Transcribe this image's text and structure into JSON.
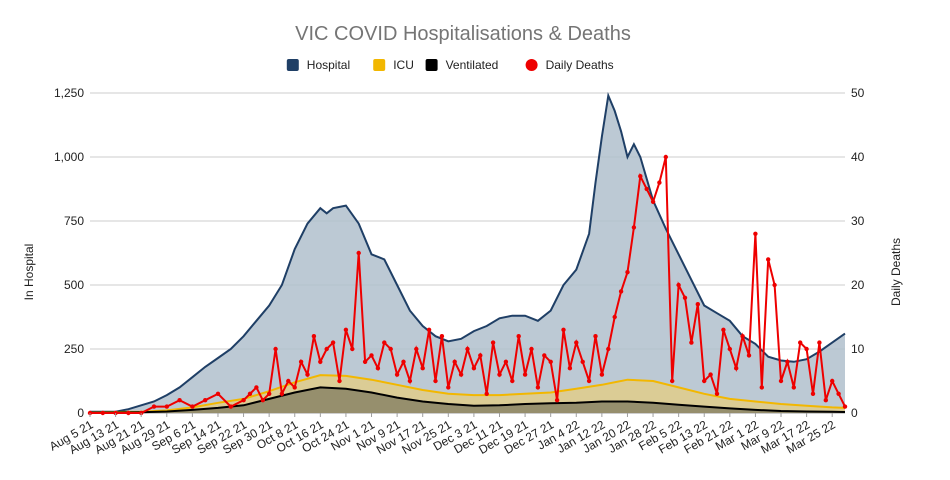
{
  "chart_data": {
    "type": "area",
    "title": "VIC COVID Hospitalisations & Deaths",
    "ylabel_left": "In Hospital",
    "ylabel_right": "Daily Deaths",
    "ylim_left": [
      0,
      1250
    ],
    "ylim_right": [
      0,
      50
    ],
    "yticks_left": [
      "0",
      "250",
      "500",
      "750",
      "1,000",
      "1,250"
    ],
    "yticks_right": [
      "0",
      "10",
      "20",
      "30",
      "40",
      "50"
    ],
    "grid": true,
    "legend_position": "top",
    "x_tick_labels": [
      "Aug 5 21",
      "Aug 13 21",
      "Aug 21 21",
      "Aug 29 21",
      "Sep 6 21",
      "Sep 14 21",
      "Sep 22 21",
      "Sep 30 21",
      "Oct 8 21",
      "Oct 16 21",
      "Oct 24 21",
      "Nov 1 21",
      "Nov 9 21",
      "Nov 17 21",
      "Nov 25 21",
      "Dec 3 21",
      "Dec 11 21",
      "Dec 19 21",
      "Dec 27 21",
      "Jan 4 22",
      "Jan 12 22",
      "Jan 20 22",
      "Jan 28 22",
      "Feb 5 22",
      "Feb 13 22",
      "Feb 21 22",
      "Mar 1 22",
      "Mar 9 22",
      "Mar 17 22",
      "Mar 25 22"
    ],
    "x_day_offsets": [
      0,
      8,
      16,
      24,
      32,
      40,
      48,
      56,
      64,
      72,
      80,
      88,
      96,
      104,
      112,
      120,
      128,
      136,
      144,
      152,
      160,
      168,
      176,
      184,
      192,
      200,
      208,
      216,
      224,
      232
    ],
    "series": [
      {
        "name": "Hospital",
        "axis": "left",
        "color": "#1f3f66",
        "fill": "#b0bfcc",
        "day_offsets": [
          0,
          8,
          12,
          16,
          20,
          24,
          28,
          32,
          36,
          40,
          44,
          48,
          52,
          56,
          60,
          64,
          68,
          72,
          74,
          76,
          80,
          84,
          88,
          92,
          96,
          100,
          104,
          108,
          112,
          116,
          120,
          124,
          128,
          132,
          136,
          140,
          144,
          148,
          152,
          156,
          158,
          160,
          162,
          164,
          166,
          168,
          170,
          172,
          176,
          180,
          184,
          188,
          192,
          196,
          200,
          204,
          208,
          212,
          216,
          220,
          224,
          228,
          232,
          236
        ],
        "values": [
          5,
          5,
          15,
          30,
          45,
          70,
          100,
          140,
          180,
          215,
          250,
          300,
          360,
          420,
          500,
          640,
          740,
          800,
          780,
          800,
          810,
          740,
          620,
          600,
          500,
          400,
          340,
          300,
          280,
          290,
          320,
          340,
          370,
          380,
          380,
          360,
          400,
          500,
          560,
          700,
          900,
          1080,
          1240,
          1180,
          1100,
          1000,
          1050,
          1000,
          830,
          720,
          620,
          520,
          420,
          390,
          360,
          300,
          270,
          220,
          205,
          200,
          210,
          240,
          275,
          310
        ]
      },
      {
        "name": "ICU",
        "axis": "left",
        "color": "#f2b700",
        "fill": "#e0cc8a",
        "day_offsets": [
          0,
          16,
          24,
          32,
          40,
          48,
          56,
          64,
          72,
          80,
          88,
          96,
          104,
          112,
          120,
          128,
          136,
          144,
          152,
          160,
          168,
          176,
          184,
          192,
          200,
          208,
          216,
          224,
          232,
          236
        ],
        "values": [
          2,
          5,
          10,
          22,
          40,
          55,
          85,
          120,
          148,
          145,
          130,
          110,
          90,
          75,
          70,
          70,
          75,
          80,
          95,
          110,
          130,
          125,
          100,
          75,
          55,
          45,
          35,
          28,
          22,
          20
        ]
      },
      {
        "name": "Ventilated",
        "axis": "left",
        "color": "#000000",
        "fill": "#8a8466",
        "day_offsets": [
          0,
          16,
          24,
          32,
          40,
          48,
          56,
          64,
          72,
          80,
          88,
          96,
          104,
          112,
          120,
          128,
          136,
          144,
          152,
          160,
          168,
          176,
          184,
          192,
          200,
          208,
          216,
          224,
          232,
          236
        ],
        "values": [
          1,
          3,
          6,
          12,
          20,
          30,
          55,
          80,
          100,
          95,
          80,
          60,
          45,
          35,
          28,
          30,
          35,
          38,
          40,
          45,
          45,
          40,
          32,
          25,
          18,
          12,
          8,
          6,
          5,
          4
        ]
      },
      {
        "name": "Daily Deaths",
        "axis": "right",
        "color": "#ee0000",
        "day_offsets": [
          0,
          4,
          8,
          12,
          16,
          20,
          24,
          28,
          32,
          36,
          40,
          44,
          48,
          50,
          52,
          54,
          56,
          58,
          60,
          62,
          64,
          66,
          68,
          70,
          72,
          74,
          76,
          78,
          80,
          82,
          84,
          86,
          88,
          90,
          92,
          94,
          96,
          98,
          100,
          102,
          104,
          106,
          108,
          110,
          112,
          114,
          116,
          118,
          120,
          122,
          124,
          126,
          128,
          130,
          132,
          134,
          136,
          138,
          140,
          142,
          144,
          146,
          148,
          150,
          152,
          154,
          156,
          158,
          160,
          162,
          164,
          166,
          168,
          170,
          172,
          174,
          176,
          178,
          180,
          182,
          184,
          186,
          188,
          190,
          192,
          194,
          196,
          198,
          200,
          202,
          204,
          206,
          208,
          210,
          212,
          214,
          216,
          218,
          220,
          222,
          224,
          226,
          228,
          230,
          232,
          234,
          236
        ],
        "values": [
          0,
          0,
          0,
          0,
          0,
          1,
          1,
          2,
          1,
          2,
          3,
          1,
          2,
          3,
          4,
          2,
          3,
          10,
          3,
          5,
          4,
          8,
          6,
          12,
          8,
          10,
          11,
          5,
          13,
          10,
          25,
          8,
          9,
          7,
          11,
          10,
          6,
          8,
          5,
          10,
          7,
          13,
          5,
          12,
          4,
          8,
          6,
          10,
          7,
          9,
          3,
          11,
          6,
          8,
          5,
          12,
          6,
          10,
          4,
          9,
          8,
          2,
          13,
          7,
          11,
          8,
          5,
          12,
          6,
          10,
          15,
          19,
          22,
          29,
          37,
          35,
          33,
          36,
          40,
          5,
          20,
          18,
          11,
          17,
          5,
          6,
          3,
          13,
          10,
          7,
          12,
          9,
          28,
          4,
          24,
          20,
          5,
          8,
          4,
          11,
          10,
          3,
          11,
          2,
          5,
          3,
          1
        ]
      }
    ]
  }
}
